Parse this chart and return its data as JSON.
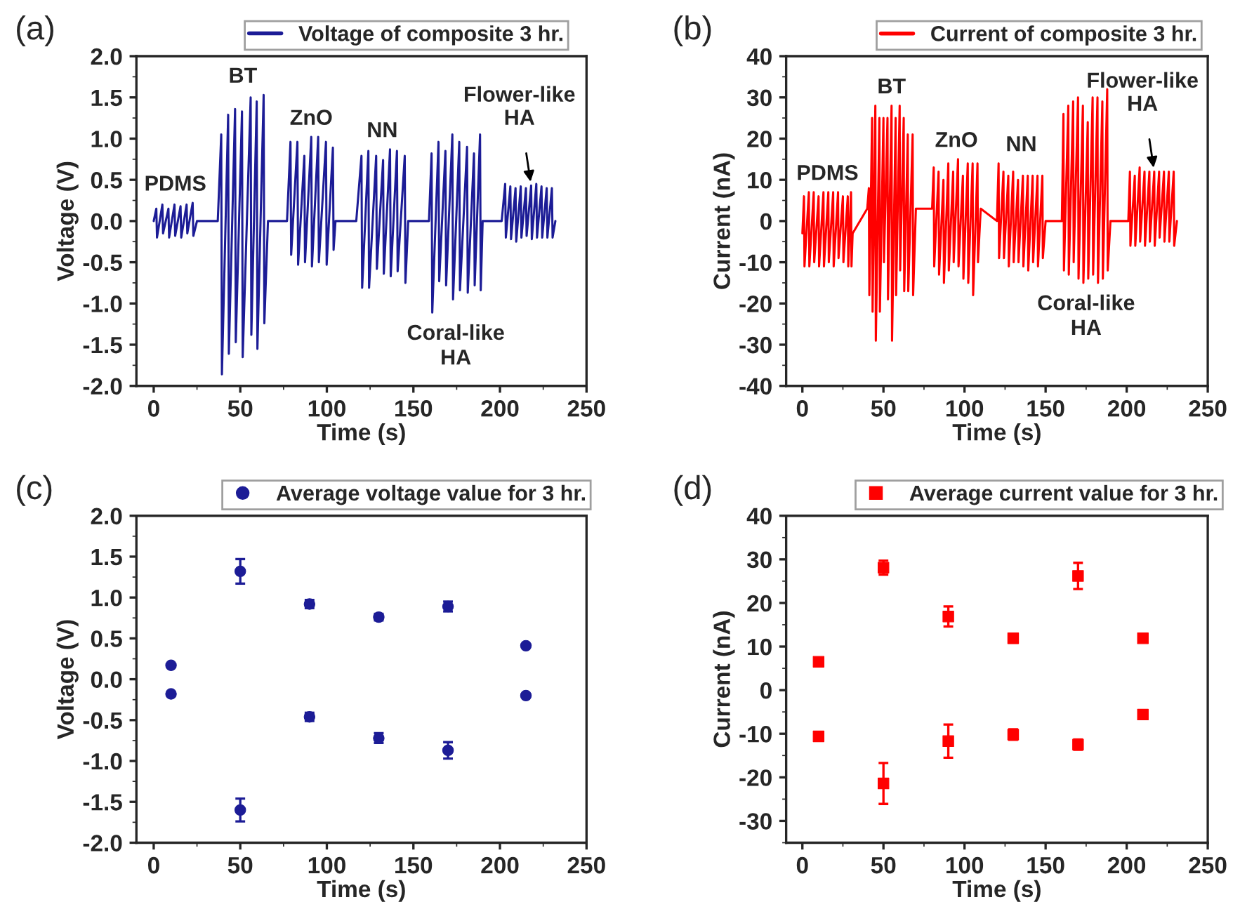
{
  "chart_data": [
    {
      "type": "line",
      "xlabel": "Time (s)",
      "ylabel": "Voltage (V)",
      "legend": "top",
      "xlim": [
        -10,
        250
      ],
      "xticks": [
        0,
        50,
        100,
        150,
        200,
        250
      ],
      "ylim": [
        -2,
        2
      ],
      "yticks": [
        {
          "value": -2,
          "label": "-2.0"
        },
        {
          "value": -1.5,
          "label": "-1.5"
        },
        {
          "value": -1,
          "label": "-1.0"
        },
        {
          "value": -0.5,
          "label": "-0.5"
        },
        {
          "value": 0,
          "label": "0.0"
        },
        {
          "value": 0.5,
          "label": "0.5"
        },
        {
          "value": 1,
          "label": "1.0"
        },
        {
          "value": 1.5,
          "label": "1.5"
        },
        {
          "value": 2,
          "label": "2.0"
        }
      ],
      "annotations": [
        "(a)",
        "PDMS",
        "BT",
        "ZnO",
        "NN",
        "Coral-like\nHA",
        {
          "text": "Flower-like\nHA",
          "x": 218,
          "y": 0.43
        }
      ],
      "series": [
        {
          "name": "Voltage of composite 3 hr.",
          "color": "#1c1c96",
          "x": [
            0,
            1.5,
            1.9,
            5,
            5.4,
            8.5,
            8.9,
            12,
            12.4,
            15.5,
            15.9,
            19,
            19.4,
            22.5,
            22.9,
            25,
            37,
            39,
            39.4,
            43,
            43.4,
            47,
            47.4,
            51,
            51.4,
            56,
            56.4,
            59.5,
            59.9,
            63.5,
            63.9,
            66,
            77,
            79,
            79.4,
            83,
            83.4,
            87,
            87.4,
            91,
            91.4,
            95,
            95.4,
            99.5,
            99.9,
            103.5,
            103.9,
            105,
            117,
            120,
            120.4,
            124,
            124.4,
            128.5,
            128.9,
            132.5,
            132.9,
            136.5,
            136.9,
            140.5,
            140.9,
            145,
            145.4,
            147,
            159,
            160.5,
            160.9,
            164.5,
            164.9,
            168.5,
            168.9,
            172.5,
            172.9,
            176.5,
            176.9,
            181,
            181.4,
            185,
            185.4,
            188.5,
            188.9,
            190,
            201,
            203,
            203.4,
            206,
            206.4,
            209,
            209.4,
            212,
            212.4,
            215,
            215.4,
            218,
            218.4,
            221,
            221.4,
            224,
            224.4,
            227,
            227.4,
            230,
            230.4,
            232
          ],
          "values": [
            0,
            0.15,
            -0.2,
            0.2,
            -0.15,
            0.15,
            -0.2,
            0.2,
            -0.18,
            0.18,
            -0.2,
            0.2,
            -0.15,
            0.22,
            -0.18,
            0,
            0,
            1.05,
            -1.86,
            1.29,
            -1.61,
            1.36,
            -1.47,
            1.33,
            -1.65,
            1.5,
            -1.38,
            1.45,
            -1.55,
            1.53,
            -1.24,
            0,
            0,
            0.96,
            -0.41,
            0.96,
            -0.53,
            0.79,
            -0.5,
            1.02,
            -0.55,
            1.02,
            -0.5,
            0.96,
            -0.53,
            0.89,
            -0.35,
            0,
            0,
            0.79,
            -0.81,
            0.85,
            -0.81,
            0.79,
            -0.58,
            0.74,
            -0.64,
            0.87,
            -0.67,
            0.85,
            -0.61,
            0.79,
            -0.75,
            0,
            0,
            0.82,
            -1.11,
            0.96,
            -0.73,
            0.85,
            -0.78,
            1.05,
            -0.95,
            0.96,
            -0.84,
            0.9,
            -0.87,
            0.82,
            -0.78,
            1.05,
            -0.84,
            0,
            0,
            0.45,
            -0.2,
            0.42,
            -0.22,
            0.4,
            -0.25,
            0.42,
            -0.2,
            0.4,
            -0.18,
            0.43,
            -0.22,
            0.45,
            -0.2,
            0.42,
            -0.2,
            0.4,
            -0.2,
            0.4,
            -0.2,
            0
          ]
        }
      ]
    },
    {
      "type": "line",
      "xlabel": "Time (s)",
      "ylabel": "Current (nA)",
      "legend": "top",
      "xlim": [
        -10,
        250
      ],
      "xticks": [
        0,
        50,
        100,
        150,
        200,
        250
      ],
      "ylim": [
        -40,
        40
      ],
      "yticks": [
        -40,
        -30,
        -20,
        -10,
        0,
        10,
        20,
        30,
        40
      ],
      "annotations": [
        "(b)",
        "PDMS",
        "BT",
        "ZnO",
        "NN",
        "Coral-like\nHA",
        {
          "text": "Flower-like\nHA",
          "x": 217,
          "y": 12
        }
      ],
      "series": [
        {
          "name": "Current of composite 3 hr.",
          "color": "#ff0000",
          "x": [
            0,
            1,
            1.3,
            4,
            4.3,
            7,
            7.3,
            10,
            10.3,
            13,
            13.3,
            16,
            16.3,
            19,
            19.3,
            22,
            22.3,
            25,
            25.3,
            28,
            28.3,
            30,
            30.3,
            31,
            40,
            41,
            41.3,
            43,
            43.3,
            45,
            45.3,
            47.5,
            47.8,
            50,
            50.3,
            52.5,
            52.8,
            55,
            55.3,
            57.5,
            57.8,
            60,
            60.3,
            62.5,
            62.8,
            65,
            65.3,
            68,
            68.3,
            70,
            80,
            81,
            81.3,
            84,
            84.3,
            87,
            87.3,
            90,
            90.3,
            93,
            93.3,
            96,
            96.3,
            99,
            99.3,
            102,
            102.3,
            105,
            105.3,
            108,
            108.3,
            110,
            120,
            121,
            121.3,
            124,
            124.3,
            127,
            127.3,
            130,
            130.3,
            133,
            133.3,
            136,
            136.3,
            139,
            139.3,
            142,
            142.3,
            145,
            145.3,
            148,
            148.3,
            150,
            160,
            161,
            161.3,
            164,
            164.3,
            167,
            167.3,
            170,
            170.3,
            173,
            173.3,
            176,
            176.3,
            179,
            179.3,
            182,
            182.3,
            185,
            185.3,
            188,
            188.3,
            190,
            201,
            202,
            202.3,
            205,
            205.3,
            208,
            208.3,
            211,
            211.3,
            214,
            214.3,
            217,
            217.3,
            220,
            220.3,
            223,
            223.3,
            226,
            226.3,
            229,
            229.3,
            231
          ],
          "values": [
            -3,
            6,
            -11,
            7,
            -11,
            7,
            -10,
            6,
            -11,
            7,
            -11,
            7,
            -10,
            7,
            -11,
            7,
            -9,
            6,
            -10,
            6,
            -11,
            7,
            -11,
            -3,
            3,
            8,
            -18,
            25,
            -22,
            28,
            -29,
            25,
            -22,
            25,
            -10,
            25,
            -19,
            28,
            -29,
            25,
            -18,
            28,
            -12,
            25,
            -17,
            21,
            -17,
            21,
            -18,
            3,
            3,
            13,
            -11,
            12,
            -13,
            10,
            -15,
            14,
            -12,
            12,
            -10,
            15,
            -11,
            11,
            -14,
            14,
            -15,
            14,
            -18,
            14,
            -10,
            3,
            0,
            14,
            -9,
            12,
            -9,
            11,
            -11,
            12,
            -10,
            10,
            -10,
            11,
            -11,
            11,
            -12,
            11,
            -10,
            11,
            -11,
            11,
            -9,
            0,
            0,
            26,
            -12,
            28,
            -13,
            29,
            -10,
            30,
            -14,
            28,
            -15,
            24,
            -14,
            30,
            -13,
            30,
            -15,
            29,
            -14,
            32,
            -12,
            0,
            0,
            12,
            -6,
            11,
            -6,
            13,
            -5,
            12,
            -6,
            12,
            -5,
            12,
            -6,
            12,
            -4,
            12,
            -5,
            12,
            -5,
            12,
            -6,
            0
          ]
        }
      ]
    },
    {
      "type": "scatter",
      "xlabel": "Time (s)",
      "ylabel": "Voltage (V)",
      "legend": "top",
      "marker": "circle",
      "xlim": [
        -10,
        250
      ],
      "xticks": [
        0,
        50,
        100,
        150,
        200,
        250
      ],
      "ylim": [
        -2,
        2
      ],
      "yticks": [
        {
          "value": -2,
          "label": "-2.0"
        },
        {
          "value": -1.5,
          "label": "-1.5"
        },
        {
          "value": -1,
          "label": "-1.0"
        },
        {
          "value": -0.5,
          "label": "-0.5"
        },
        {
          "value": 0,
          "label": "0.0"
        },
        {
          "value": 0.5,
          "label": "0.5"
        },
        {
          "value": 1,
          "label": "1.0"
        },
        {
          "value": 1.5,
          "label": "1.5"
        },
        {
          "value": 2,
          "label": "2.0"
        }
      ],
      "annotations": [
        "(c)"
      ],
      "series": [
        {
          "name": "Average voltage value for 3 hr.",
          "color": "#1c1c96",
          "x": [
            10,
            10,
            50,
            50,
            90,
            90,
            130,
            130,
            170,
            170,
            215,
            215
          ],
          "values": [
            0.17,
            -0.18,
            1.32,
            -1.6,
            0.92,
            -0.46,
            0.76,
            -0.72,
            0.89,
            -0.87,
            0.41,
            -0.2
          ],
          "errors": [
            null,
            null,
            0.15,
            0.14,
            0.05,
            0.05,
            0.04,
            0.06,
            0.06,
            0.1,
            null,
            null
          ]
        }
      ]
    },
    {
      "type": "scatter",
      "xlabel": "Time (s)",
      "ylabel": "Current (nA)",
      "legend": "top",
      "marker": "square",
      "xlim": [
        -10,
        250
      ],
      "xticks": [
        0,
        50,
        100,
        150,
        200,
        250
      ],
      "ylim": [
        -35,
        40
      ],
      "yticks": [
        -30,
        -20,
        -10,
        0,
        10,
        20,
        30,
        40
      ],
      "annotations": [
        "(d)"
      ],
      "series": [
        {
          "name": "Average current value for 3 hr.",
          "color": "#ff0000",
          "x": [
            10,
            10,
            50,
            50,
            90,
            90,
            130,
            130,
            170,
            170,
            210,
            210
          ],
          "values": [
            6.5,
            -10.6,
            28.1,
            -21.4,
            16.9,
            -11.7,
            11.9,
            -10.2,
            26.2,
            -12.5,
            11.9,
            -5.6
          ],
          "errors": [
            null,
            null,
            1.6,
            4.7,
            2.3,
            3.8,
            1,
            1.2,
            3,
            1.2,
            null,
            null
          ]
        }
      ]
    }
  ]
}
